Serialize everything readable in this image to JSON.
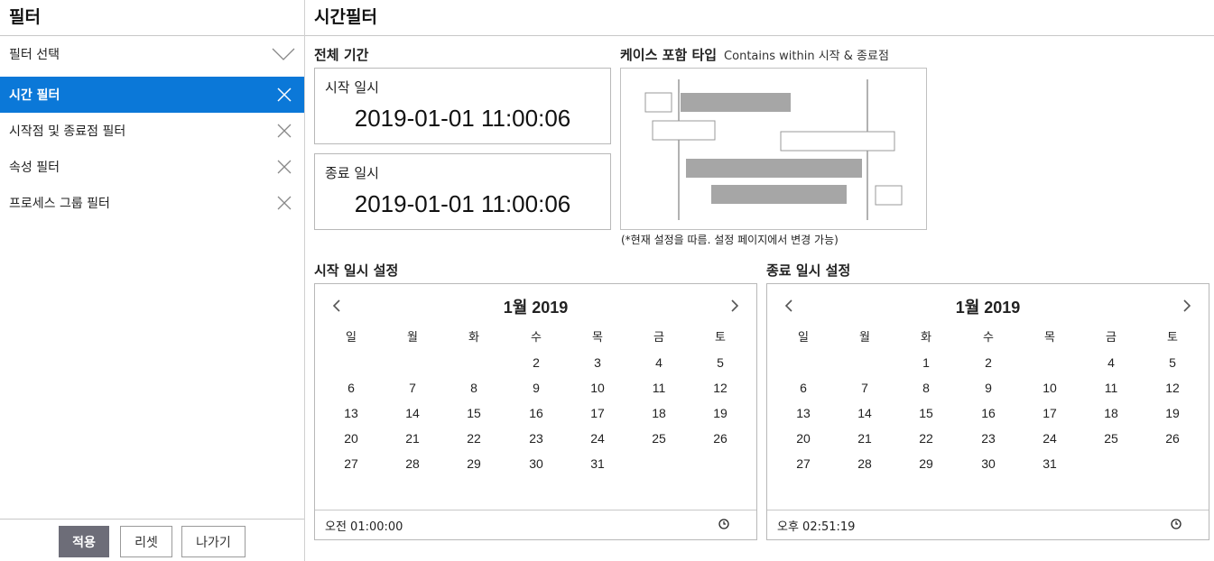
{
  "sidebar": {
    "title": "필터",
    "items": [
      {
        "label": "필터 선택",
        "icon": "chevron-down-icon",
        "active": false
      },
      {
        "label": "시간 필터",
        "icon": "close-icon",
        "active": true
      },
      {
        "label": "시작점 및 종료점 필터",
        "icon": "close-icon",
        "active": false
      },
      {
        "label": "속성 필터",
        "icon": "close-icon",
        "active": false
      },
      {
        "label": "프로세스 그룹 필터",
        "icon": "close-icon",
        "active": false
      }
    ],
    "buttons": {
      "apply": "적용",
      "reset": "리셋",
      "exit": "나가기"
    }
  },
  "main": {
    "title": "시간필터",
    "period": {
      "label": "전체 기간",
      "start_label": "시작 일시",
      "start_value": "2019-01-01 11:00:06",
      "end_label": "종료 일시",
      "end_value": "2019-01-01 11:00:06"
    },
    "case_type": {
      "label": "케이스 포함 타입",
      "sub": "Contains within 시작 & 종료점",
      "note": "(*현재 설정을 따름. 설정 페이지에서 변경 가능)"
    },
    "start_cal": {
      "label": "시작 일시 설정",
      "month": "1월 2019",
      "weekdays": [
        "일",
        "월",
        "화",
        "수",
        "목",
        "금",
        "토"
      ],
      "selected": 1,
      "time": "오전 01:00:00"
    },
    "end_cal": {
      "label": "종료 일시 설정",
      "month": "1월 2019",
      "weekdays": [
        "일",
        "월",
        "화",
        "수",
        "목",
        "금",
        "토"
      ],
      "selected": 3,
      "time": "오후 02:51:19"
    }
  },
  "colors": {
    "accent": "#0b78d8",
    "selected_day": "#6d6d78",
    "bar": "#a6a6a6"
  }
}
